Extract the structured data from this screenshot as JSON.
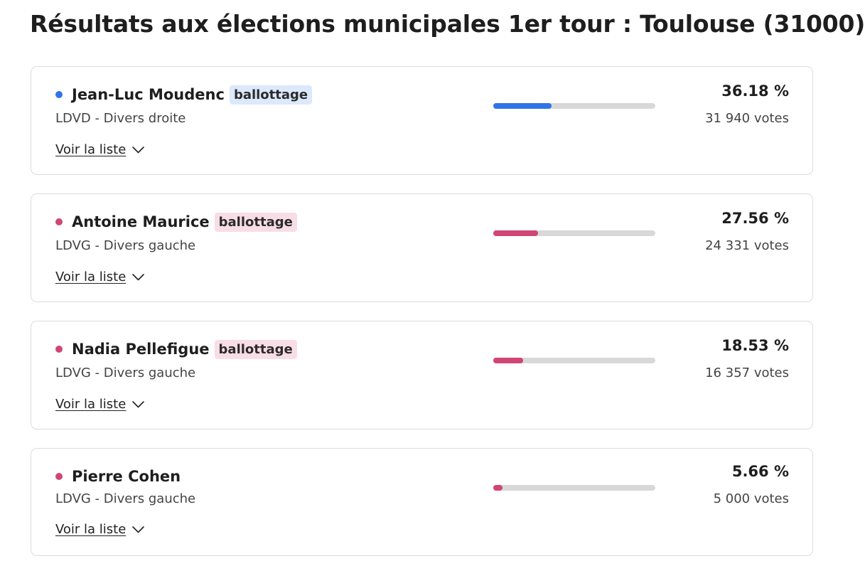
{
  "page": {
    "title": "Résultats aux élections municipales 1er tour : Toulouse (31000)"
  },
  "colors": {
    "droite": "#2f74e8",
    "gauche": "#cf4674",
    "badge_droite_bg": "#dce8fb",
    "badge_gauche_bg": "#f8dde7"
  },
  "results": [
    {
      "name": "Jean-Luc Moudenc",
      "badge": "ballottage",
      "party": "LDVD - Divers droite",
      "percent_label": "36.18 %",
      "percent": 36.18,
      "votes_label": "31 940 votes",
      "link_label": "Voir la liste",
      "color": "#2f74e8",
      "badge_bg": "#dce8fb"
    },
    {
      "name": "Antoine Maurice",
      "badge": "ballottage",
      "party": "LDVG - Divers gauche",
      "percent_label": "27.56 %",
      "percent": 27.56,
      "votes_label": "24 331 votes",
      "link_label": "Voir la liste",
      "color": "#cf4674",
      "badge_bg": "#f8dde7"
    },
    {
      "name": "Nadia Pellefigue",
      "badge": "ballottage",
      "party": "LDVG - Divers gauche",
      "percent_label": "18.53 %",
      "percent": 18.53,
      "votes_label": "16 357 votes",
      "link_label": "Voir la liste",
      "color": "#cf4674",
      "badge_bg": "#f8dde7"
    },
    {
      "name": "Pierre Cohen",
      "badge": "",
      "party": "LDVG - Divers gauche",
      "percent_label": "5.66 %",
      "percent": 5.66,
      "votes_label": "5 000 votes",
      "link_label": "Voir la liste",
      "color": "#cf4674",
      "badge_bg": "#f8dde7"
    }
  ]
}
